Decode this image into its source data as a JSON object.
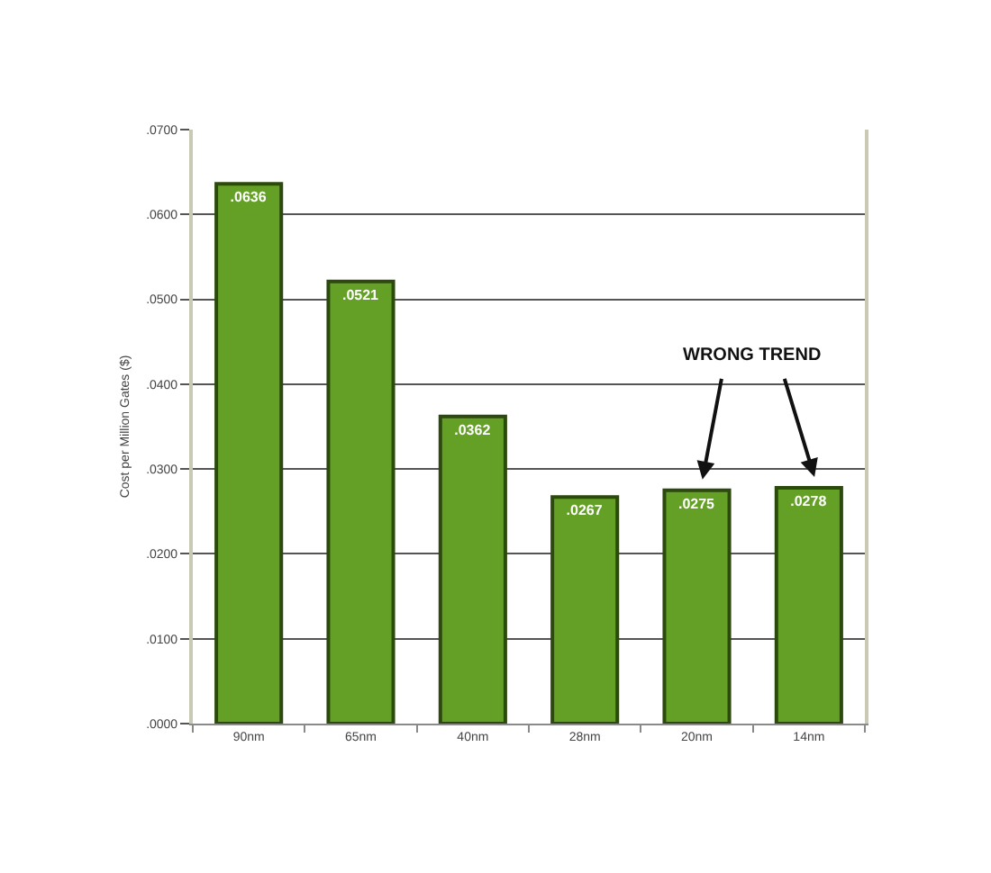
{
  "chart_data": {
    "type": "bar",
    "categories": [
      "90nm",
      "65nm",
      "40nm",
      "28nm",
      "20nm",
      "14nm"
    ],
    "values": [
      0.0636,
      0.0521,
      0.0362,
      0.0267,
      0.0275,
      0.0278
    ],
    "value_labels": [
      ".0636",
      ".0521",
      ".0362",
      ".0267",
      ".0275",
      ".0278"
    ],
    "color": "#64a026",
    "ylabel": "Cost per Million Gates ($)",
    "ylim": [
      0,
      0.07
    ],
    "yticks": [
      {
        "value": 0,
        "label": ".0000"
      },
      {
        "value": 0.01,
        "label": ".0100"
      },
      {
        "value": 0.02,
        "label": ".0200"
      },
      {
        "value": 0.03,
        "label": ".0300"
      },
      {
        "value": 0.04,
        "label": ".0400"
      },
      {
        "value": 0.05,
        "label": ".0500"
      },
      {
        "value": 0.06,
        "label": ".0600"
      },
      {
        "value": 0.07,
        "label": ".0700"
      }
    ],
    "grid": "y",
    "annotations": [
      "WRONG TREND"
    ]
  }
}
